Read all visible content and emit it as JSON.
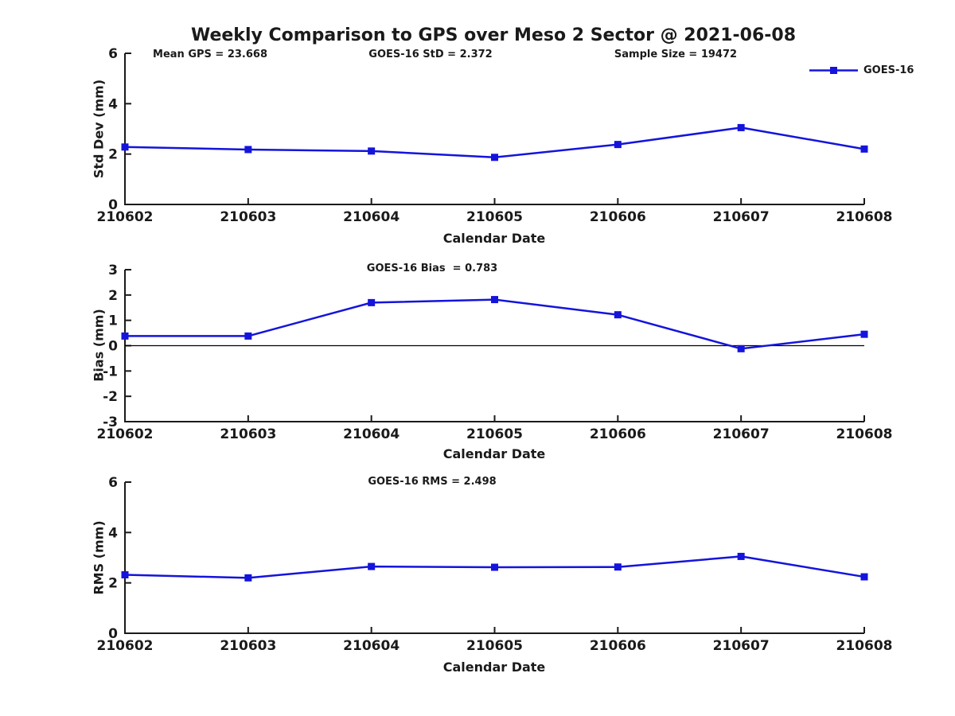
{
  "title": "Weekly Comparison to GPS over Meso 2 Sector @ 2021-06-08",
  "colors": {
    "series_line": "#1414DC",
    "axis": "#1a1a1a",
    "zero_line": "#000000",
    "text": "#1a1a1a",
    "background": "#ffffff"
  },
  "legend": {
    "label": "GOES-16",
    "position": "top-right",
    "box": false,
    "marker": "square"
  },
  "chart_data": [
    {
      "type": "line",
      "title": "",
      "annotations": [
        "Mean GPS = 23.668",
        "GOES-16 StD = 2.372",
        "Sample Size = 19472"
      ],
      "categories": [
        "210602",
        "210603",
        "210604",
        "210605",
        "210606",
        "210607",
        "210608"
      ],
      "series": [
        {
          "name": "GOES-16",
          "values": [
            2.28,
            2.18,
            2.12,
            1.87,
            2.38,
            3.05,
            2.2
          ]
        }
      ],
      "xlabel": "Calendar Date",
      "ylabel": "Std Dev (mm)",
      "ylim": [
        0,
        6
      ],
      "yticks": [
        0,
        2,
        4,
        6
      ],
      "grid": false,
      "marker": "square",
      "zero_line": false
    },
    {
      "type": "line",
      "title": "GOES-16 Bias  = 0.783",
      "annotations": [],
      "categories": [
        "210602",
        "210603",
        "210604",
        "210605",
        "210606",
        "210607",
        "210608"
      ],
      "series": [
        {
          "name": "GOES-16",
          "values": [
            0.38,
            0.38,
            1.7,
            1.82,
            1.22,
            -0.12,
            0.45
          ]
        }
      ],
      "xlabel": "Calendar Date",
      "ylabel": "Bias (mm)",
      "ylim": [
        -3,
        3
      ],
      "yticks": [
        -3,
        -2,
        -1,
        0,
        1,
        2,
        3
      ],
      "grid": false,
      "marker": "square",
      "zero_line": true
    },
    {
      "type": "line",
      "title": "GOES-16 RMS = 2.498",
      "annotations": [],
      "categories": [
        "210602",
        "210603",
        "210604",
        "210605",
        "210606",
        "210607",
        "210608"
      ],
      "series": [
        {
          "name": "GOES-16",
          "values": [
            2.32,
            2.2,
            2.65,
            2.62,
            2.63,
            3.05,
            2.24
          ]
        }
      ],
      "xlabel": "Calendar Date",
      "ylabel": "RMS (mm)",
      "ylim": [
        0,
        6
      ],
      "yticks": [
        0,
        2,
        4,
        6
      ],
      "grid": false,
      "marker": "square",
      "zero_line": false
    }
  ]
}
